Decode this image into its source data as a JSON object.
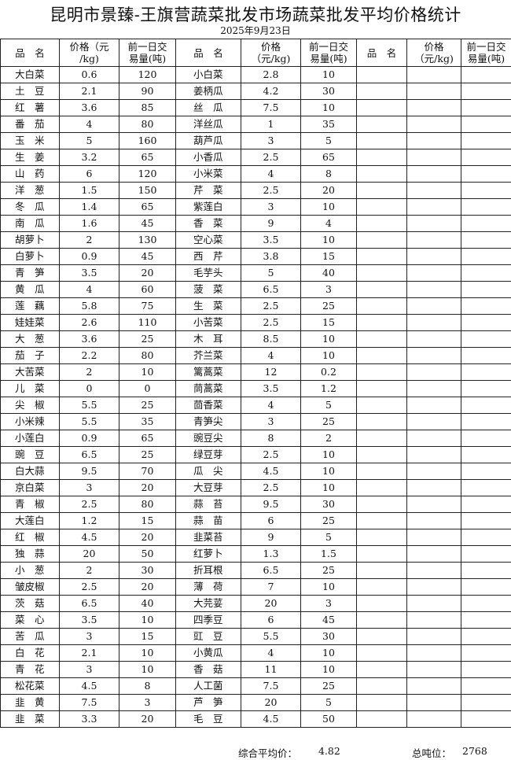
{
  "title": "昆明市景臻-王旗营蔬菜批发市场蔬菜批发平均价格统计",
  "date": "2025年9月23日",
  "headers": {
    "name": "品　名",
    "price": "价格（元/kg)",
    "price_line1": "价格（元",
    "price_line2": "/kg)",
    "volume_line1": "前一日交",
    "volume_line2": "易量(吨)"
  },
  "rows": [
    {
      "a": [
        "大白菜",
        "0.6",
        "120"
      ],
      "b": [
        "小白菜",
        "2.8",
        "10"
      ]
    },
    {
      "a": [
        "土　豆",
        "2.1",
        "90"
      ],
      "b": [
        "姜柄瓜",
        "4.2",
        "30"
      ]
    },
    {
      "a": [
        "红　薯",
        "3.6",
        "85"
      ],
      "b": [
        "丝　瓜",
        "7.5",
        "10"
      ]
    },
    {
      "a": [
        "番　茄",
        "4",
        "80"
      ],
      "b": [
        "洋丝瓜",
        "1",
        "35"
      ]
    },
    {
      "a": [
        "玉　米",
        "5",
        "160"
      ],
      "b": [
        "葫芦瓜",
        "3",
        "5"
      ]
    },
    {
      "a": [
        "生　姜",
        "3.2",
        "65"
      ],
      "b": [
        "小香瓜",
        "2.5",
        "65"
      ]
    },
    {
      "a": [
        "山　药",
        "6",
        "120"
      ],
      "b": [
        "小米菜",
        "4",
        "8"
      ]
    },
    {
      "a": [
        "洋　葱",
        "1.5",
        "150"
      ],
      "b": [
        "芹　菜",
        "2.5",
        "20"
      ]
    },
    {
      "a": [
        "冬　瓜",
        "1.4",
        "65"
      ],
      "b": [
        "紫莲白",
        "3",
        "10"
      ]
    },
    {
      "a": [
        "南　瓜",
        "1.6",
        "45"
      ],
      "b": [
        "香　菜",
        "9",
        "4"
      ]
    },
    {
      "a": [
        "胡萝卜",
        "2",
        "130"
      ],
      "b": [
        "空心菜",
        "3.5",
        "10"
      ]
    },
    {
      "a": [
        "白萝卜",
        "0.9",
        "45"
      ],
      "b": [
        "西　芹",
        "3.8",
        "15"
      ]
    },
    {
      "a": [
        "青　笋",
        "3.5",
        "20"
      ],
      "b": [
        "毛芋头",
        "5",
        "40"
      ]
    },
    {
      "a": [
        "黄　瓜",
        "4",
        "60"
      ],
      "b": [
        "菠　菜",
        "6.5",
        "3"
      ]
    },
    {
      "a": [
        "莲　藕",
        "5.8",
        "75"
      ],
      "b": [
        "生　菜",
        "2.5",
        "25"
      ]
    },
    {
      "a": [
        "娃娃菜",
        "2.6",
        "110"
      ],
      "b": [
        "小苦菜",
        "2.5",
        "15"
      ]
    },
    {
      "a": [
        "大　葱",
        "3.6",
        "25"
      ],
      "b": [
        "木　耳",
        "8.5",
        "10"
      ]
    },
    {
      "a": [
        "茄　子",
        "2.2",
        "80"
      ],
      "b": [
        "芥兰菜",
        "4",
        "10"
      ]
    },
    {
      "a": [
        "大苦菜",
        "2",
        "10"
      ],
      "b": [
        "篱蒿菜",
        "12",
        "0.2"
      ]
    },
    {
      "a": [
        "儿　菜",
        "0",
        "0"
      ],
      "b": [
        "茼蒿菜",
        "3.5",
        "1.2"
      ]
    },
    {
      "a": [
        "尖　椒",
        "5.5",
        "25"
      ],
      "b": [
        "茴香菜",
        "4",
        "5"
      ]
    },
    {
      "a": [
        "小米辣",
        "5.5",
        "35"
      ],
      "b": [
        "青笋尖",
        "3",
        "25"
      ]
    },
    {
      "a": [
        "小莲白",
        "0.9",
        "65"
      ],
      "b": [
        "豌豆尖",
        "8",
        "2"
      ]
    },
    {
      "a": [
        "豌　豆",
        "6.5",
        "25"
      ],
      "b": [
        "绿豆芽",
        "2.5",
        "10"
      ]
    },
    {
      "a": [
        "白大蒜",
        "9.5",
        "70"
      ],
      "b": [
        "瓜　尖",
        "4.5",
        "10"
      ]
    },
    {
      "a": [
        "京白菜",
        "3",
        "20"
      ],
      "b": [
        "大豆芽",
        "2.5",
        "10"
      ]
    },
    {
      "a": [
        "青　椒",
        "2.5",
        "80"
      ],
      "b": [
        "蒜　苔",
        "9.5",
        "30"
      ]
    },
    {
      "a": [
        "大莲白",
        "1.2",
        "15"
      ],
      "b": [
        "蒜　苗",
        "6",
        "25"
      ]
    },
    {
      "a": [
        "红　椒",
        "4.5",
        "20"
      ],
      "b": [
        "韭菜苔",
        "9",
        "5"
      ]
    },
    {
      "a": [
        "独　蒜",
        "20",
        "50"
      ],
      "b": [
        "红萝卜",
        "1.3",
        "1.5"
      ]
    },
    {
      "a": [
        "小　葱",
        "2",
        "30"
      ],
      "b": [
        "折耳根",
        "6.5",
        "25"
      ]
    },
    {
      "a": [
        "皱皮椒",
        "2.5",
        "20"
      ],
      "b": [
        "薄　荷",
        "7",
        "10"
      ]
    },
    {
      "a": [
        "茨　菇",
        "6.5",
        "40"
      ],
      "b": [
        "大芫荽",
        "20",
        "3"
      ]
    },
    {
      "a": [
        "菜　心",
        "3.5",
        "10"
      ],
      "b": [
        "四季豆",
        "6",
        "45"
      ]
    },
    {
      "a": [
        "苦　瓜",
        "3",
        "15"
      ],
      "b": [
        "豇　豆",
        "5.5",
        "30"
      ]
    },
    {
      "a": [
        "白　花",
        "2.1",
        "10"
      ],
      "b": [
        "小黄瓜",
        "4",
        "10"
      ]
    },
    {
      "a": [
        "青　花",
        "3",
        "10"
      ],
      "b": [
        "香　菇",
        "11",
        "10"
      ]
    },
    {
      "a": [
        "松花菜",
        "4.5",
        "8"
      ],
      "b": [
        "人工菌",
        "7.5",
        "25"
      ]
    },
    {
      "a": [
        "韭　黄",
        "7.5",
        "3"
      ],
      "b": [
        "芦　笋",
        "20",
        "5"
      ]
    },
    {
      "a": [
        "韭　菜",
        "3.3",
        "20"
      ],
      "b": [
        "毛　豆",
        "4.5",
        "50"
      ]
    }
  ],
  "footer": {
    "avg_label": "综合平均价：",
    "avg_value": "4.82",
    "total_label": "总吨位：",
    "total_value": "2768"
  }
}
